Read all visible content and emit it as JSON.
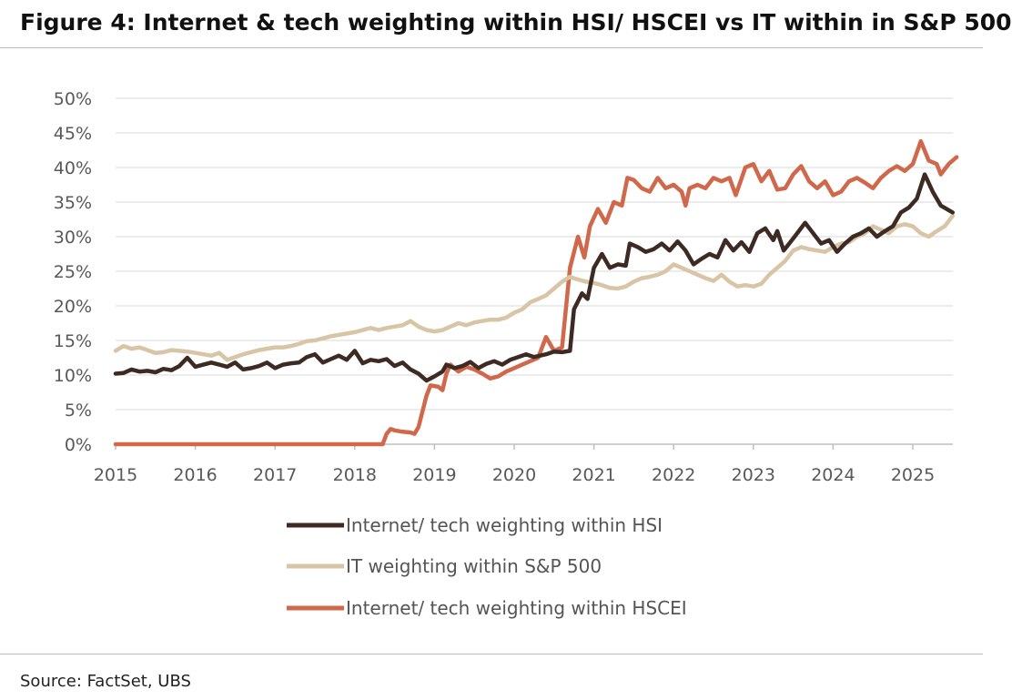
{
  "title": "Figure 4: Internet & tech weighting within HSI/ HSCEI vs IT within in S&P 500",
  "source": "Source: FactSet, UBS",
  "chart_data": {
    "type": "line",
    "y_ticks": [
      "0%",
      "5%",
      "10%",
      "15%",
      "20%",
      "25%",
      "30%",
      "35%",
      "40%",
      "45%",
      "50%"
    ],
    "x_ticks": [
      "2015",
      "2016",
      "2017",
      "2018",
      "2019",
      "2020",
      "2021",
      "2022",
      "2023",
      "2024",
      "2025"
    ],
    "xlim": [
      2015.0,
      2025.6
    ],
    "ylim": [
      0,
      50
    ],
    "grid": "horizontal",
    "legend_position": "bottom",
    "series": [
      {
        "name": "Internet/ tech weighting within HSI",
        "color": "#3d2b23",
        "points": [
          [
            2015.0,
            10.2
          ],
          [
            2015.1,
            10.3
          ],
          [
            2015.2,
            10.8
          ],
          [
            2015.3,
            10.5
          ],
          [
            2015.4,
            10.6
          ],
          [
            2015.5,
            10.4
          ],
          [
            2015.6,
            10.9
          ],
          [
            2015.7,
            10.7
          ],
          [
            2015.8,
            11.3
          ],
          [
            2015.9,
            12.5
          ],
          [
            2016.0,
            11.2
          ],
          [
            2016.1,
            11.5
          ],
          [
            2016.2,
            11.8
          ],
          [
            2016.3,
            11.5
          ],
          [
            2016.4,
            11.2
          ],
          [
            2016.5,
            11.8
          ],
          [
            2016.6,
            10.8
          ],
          [
            2016.7,
            11.0
          ],
          [
            2016.8,
            11.3
          ],
          [
            2016.9,
            11.8
          ],
          [
            2017.0,
            11.0
          ],
          [
            2017.1,
            11.5
          ],
          [
            2017.2,
            11.7
          ],
          [
            2017.3,
            11.8
          ],
          [
            2017.4,
            12.6
          ],
          [
            2017.5,
            13.0
          ],
          [
            2017.6,
            11.8
          ],
          [
            2017.7,
            12.3
          ],
          [
            2017.8,
            12.8
          ],
          [
            2017.9,
            12.2
          ],
          [
            2018.0,
            13.5
          ],
          [
            2018.1,
            11.7
          ],
          [
            2018.2,
            12.2
          ],
          [
            2018.3,
            12.0
          ],
          [
            2018.4,
            12.3
          ],
          [
            2018.5,
            11.3
          ],
          [
            2018.6,
            11.8
          ],
          [
            2018.7,
            10.8
          ],
          [
            2018.8,
            10.2
          ],
          [
            2018.9,
            9.2
          ],
          [
            2019.0,
            9.8
          ],
          [
            2019.1,
            10.5
          ],
          [
            2019.15,
            11.5
          ],
          [
            2019.25,
            11.0
          ],
          [
            2019.35,
            11.3
          ],
          [
            2019.45,
            11.9
          ],
          [
            2019.55,
            11.0
          ],
          [
            2019.65,
            11.6
          ],
          [
            2019.75,
            12.0
          ],
          [
            2019.85,
            11.5
          ],
          [
            2019.95,
            12.2
          ],
          [
            2020.05,
            12.6
          ],
          [
            2020.15,
            13.0
          ],
          [
            2020.25,
            12.6
          ],
          [
            2020.4,
            13.0
          ],
          [
            2020.5,
            13.4
          ],
          [
            2020.6,
            13.3
          ],
          [
            2020.7,
            13.5
          ],
          [
            2020.75,
            19.5
          ],
          [
            2020.85,
            21.8
          ],
          [
            2020.92,
            21.0
          ],
          [
            2021.0,
            25.5
          ],
          [
            2021.1,
            27.5
          ],
          [
            2021.2,
            25.5
          ],
          [
            2021.3,
            26.0
          ],
          [
            2021.4,
            25.8
          ],
          [
            2021.45,
            29.0
          ],
          [
            2021.55,
            28.5
          ],
          [
            2021.65,
            27.8
          ],
          [
            2021.75,
            28.2
          ],
          [
            2021.85,
            29.0
          ],
          [
            2021.95,
            28.0
          ],
          [
            2022.05,
            29.3
          ],
          [
            2022.15,
            28.0
          ],
          [
            2022.25,
            26.0
          ],
          [
            2022.35,
            26.8
          ],
          [
            2022.45,
            27.5
          ],
          [
            2022.55,
            27.0
          ],
          [
            2022.65,
            29.5
          ],
          [
            2022.75,
            28.0
          ],
          [
            2022.85,
            29.2
          ],
          [
            2022.95,
            27.8
          ],
          [
            2023.05,
            30.5
          ],
          [
            2023.15,
            31.2
          ],
          [
            2023.25,
            29.5
          ],
          [
            2023.3,
            30.8
          ],
          [
            2023.38,
            28.0
          ],
          [
            2023.45,
            29.0
          ],
          [
            2023.55,
            30.5
          ],
          [
            2023.65,
            32.0
          ],
          [
            2023.75,
            30.5
          ],
          [
            2023.85,
            29.0
          ],
          [
            2023.95,
            29.5
          ],
          [
            2024.05,
            27.8
          ],
          [
            2024.15,
            29.0
          ],
          [
            2024.25,
            30.0
          ],
          [
            2024.35,
            30.5
          ],
          [
            2024.45,
            31.2
          ],
          [
            2024.55,
            30.0
          ],
          [
            2024.65,
            30.8
          ],
          [
            2024.75,
            31.5
          ],
          [
            2024.85,
            33.5
          ],
          [
            2024.95,
            34.2
          ],
          [
            2025.05,
            35.5
          ],
          [
            2025.15,
            39.0
          ],
          [
            2025.25,
            36.5
          ],
          [
            2025.35,
            34.5
          ],
          [
            2025.5,
            33.5
          ]
        ]
      },
      {
        "name": "IT weighting within S&P 500",
        "color": "#d8c5a6",
        "points": [
          [
            2015.0,
            13.5
          ],
          [
            2015.1,
            14.2
          ],
          [
            2015.2,
            13.8
          ],
          [
            2015.3,
            14.0
          ],
          [
            2015.4,
            13.6
          ],
          [
            2015.5,
            13.2
          ],
          [
            2015.6,
            13.3
          ],
          [
            2015.7,
            13.6
          ],
          [
            2015.8,
            13.5
          ],
          [
            2015.9,
            13.4
          ],
          [
            2016.0,
            13.2
          ],
          [
            2016.1,
            13.0
          ],
          [
            2016.2,
            12.8
          ],
          [
            2016.3,
            13.2
          ],
          [
            2016.4,
            12.2
          ],
          [
            2016.5,
            12.6
          ],
          [
            2016.6,
            13.0
          ],
          [
            2016.7,
            13.3
          ],
          [
            2016.8,
            13.6
          ],
          [
            2016.9,
            13.8
          ],
          [
            2017.0,
            14.0
          ],
          [
            2017.1,
            14.0
          ],
          [
            2017.2,
            14.2
          ],
          [
            2017.3,
            14.5
          ],
          [
            2017.4,
            14.9
          ],
          [
            2017.5,
            15.0
          ],
          [
            2017.6,
            15.3
          ],
          [
            2017.7,
            15.6
          ],
          [
            2017.8,
            15.8
          ],
          [
            2017.9,
            16.0
          ],
          [
            2018.0,
            16.2
          ],
          [
            2018.1,
            16.5
          ],
          [
            2018.2,
            16.8
          ],
          [
            2018.3,
            16.5
          ],
          [
            2018.4,
            16.8
          ],
          [
            2018.5,
            17.0
          ],
          [
            2018.6,
            17.2
          ],
          [
            2018.7,
            17.8
          ],
          [
            2018.8,
            17.0
          ],
          [
            2018.9,
            16.5
          ],
          [
            2019.0,
            16.3
          ],
          [
            2019.1,
            16.5
          ],
          [
            2019.2,
            17.0
          ],
          [
            2019.3,
            17.5
          ],
          [
            2019.4,
            17.2
          ],
          [
            2019.5,
            17.6
          ],
          [
            2019.6,
            17.8
          ],
          [
            2019.7,
            18.0
          ],
          [
            2019.8,
            18.0
          ],
          [
            2019.9,
            18.3
          ],
          [
            2020.0,
            19.0
          ],
          [
            2020.1,
            19.5
          ],
          [
            2020.2,
            20.5
          ],
          [
            2020.3,
            21.0
          ],
          [
            2020.4,
            21.5
          ],
          [
            2020.5,
            22.5
          ],
          [
            2020.6,
            23.5
          ],
          [
            2020.7,
            24.2
          ],
          [
            2020.8,
            23.8
          ],
          [
            2020.9,
            23.5
          ],
          [
            2021.0,
            23.3
          ],
          [
            2021.1,
            23.0
          ],
          [
            2021.2,
            22.6
          ],
          [
            2021.3,
            22.5
          ],
          [
            2021.4,
            22.8
          ],
          [
            2021.5,
            23.5
          ],
          [
            2021.6,
            24.0
          ],
          [
            2021.7,
            24.2
          ],
          [
            2021.8,
            24.5
          ],
          [
            2021.9,
            25.0
          ],
          [
            2022.0,
            26.0
          ],
          [
            2022.1,
            25.5
          ],
          [
            2022.2,
            25.0
          ],
          [
            2022.3,
            24.5
          ],
          [
            2022.4,
            24.0
          ],
          [
            2022.5,
            23.6
          ],
          [
            2022.6,
            24.5
          ],
          [
            2022.7,
            23.5
          ],
          [
            2022.8,
            22.8
          ],
          [
            2022.9,
            23.0
          ],
          [
            2023.0,
            22.8
          ],
          [
            2023.1,
            23.2
          ],
          [
            2023.2,
            24.5
          ],
          [
            2023.3,
            25.5
          ],
          [
            2023.4,
            26.5
          ],
          [
            2023.5,
            28.0
          ],
          [
            2023.6,
            28.5
          ],
          [
            2023.7,
            28.2
          ],
          [
            2023.8,
            28.0
          ],
          [
            2023.9,
            27.8
          ],
          [
            2024.0,
            28.5
          ],
          [
            2024.1,
            29.0
          ],
          [
            2024.2,
            29.2
          ],
          [
            2024.3,
            30.0
          ],
          [
            2024.4,
            30.5
          ],
          [
            2024.5,
            31.5
          ],
          [
            2024.6,
            31.0
          ],
          [
            2024.7,
            30.5
          ],
          [
            2024.8,
            31.5
          ],
          [
            2024.9,
            31.8
          ],
          [
            2025.0,
            31.5
          ],
          [
            2025.1,
            30.5
          ],
          [
            2025.2,
            30.0
          ],
          [
            2025.3,
            30.8
          ],
          [
            2025.4,
            31.5
          ],
          [
            2025.5,
            33.0
          ]
        ]
      },
      {
        "name": "Internet/ tech weighting within HSCEI",
        "color": "#d0694b",
        "points": [
          [
            2015.0,
            0.0
          ],
          [
            2018.35,
            0.0
          ],
          [
            2018.4,
            1.5
          ],
          [
            2018.45,
            2.2
          ],
          [
            2018.5,
            2.0
          ],
          [
            2018.6,
            1.8
          ],
          [
            2018.7,
            1.7
          ],
          [
            2018.75,
            1.5
          ],
          [
            2018.8,
            2.5
          ],
          [
            2018.9,
            7.0
          ],
          [
            2018.95,
            8.5
          ],
          [
            2019.05,
            8.3
          ],
          [
            2019.1,
            7.8
          ],
          [
            2019.15,
            10.2
          ],
          [
            2019.2,
            11.5
          ],
          [
            2019.3,
            10.5
          ],
          [
            2019.4,
            11.2
          ],
          [
            2019.5,
            10.8
          ],
          [
            2019.6,
            10.2
          ],
          [
            2019.7,
            9.5
          ],
          [
            2019.8,
            9.8
          ],
          [
            2019.9,
            10.5
          ],
          [
            2020.0,
            11.0
          ],
          [
            2020.1,
            11.5
          ],
          [
            2020.2,
            12.0
          ],
          [
            2020.3,
            12.5
          ],
          [
            2020.4,
            15.5
          ],
          [
            2020.5,
            13.5
          ],
          [
            2020.6,
            14.0
          ],
          [
            2020.7,
            25.5
          ],
          [
            2020.8,
            30.0
          ],
          [
            2020.88,
            27.0
          ],
          [
            2020.95,
            31.5
          ],
          [
            2021.05,
            34.0
          ],
          [
            2021.15,
            32.0
          ],
          [
            2021.25,
            35.0
          ],
          [
            2021.35,
            34.5
          ],
          [
            2021.42,
            38.5
          ],
          [
            2021.5,
            38.2
          ],
          [
            2021.6,
            37.0
          ],
          [
            2021.7,
            36.5
          ],
          [
            2021.8,
            38.5
          ],
          [
            2021.9,
            37.0
          ],
          [
            2022.0,
            37.5
          ],
          [
            2022.1,
            36.5
          ],
          [
            2022.15,
            34.5
          ],
          [
            2022.2,
            37.0
          ],
          [
            2022.3,
            37.5
          ],
          [
            2022.4,
            37.0
          ],
          [
            2022.5,
            38.5
          ],
          [
            2022.6,
            38.0
          ],
          [
            2022.7,
            38.5
          ],
          [
            2022.78,
            36.0
          ],
          [
            2022.9,
            40.0
          ],
          [
            2023.0,
            40.5
          ],
          [
            2023.1,
            38.0
          ],
          [
            2023.2,
            39.5
          ],
          [
            2023.3,
            36.8
          ],
          [
            2023.4,
            37.0
          ],
          [
            2023.5,
            39.0
          ],
          [
            2023.6,
            40.2
          ],
          [
            2023.7,
            38.0
          ],
          [
            2023.8,
            37.0
          ],
          [
            2023.9,
            38.0
          ],
          [
            2024.0,
            36.0
          ],
          [
            2024.1,
            36.5
          ],
          [
            2024.2,
            38.0
          ],
          [
            2024.3,
            38.5
          ],
          [
            2024.4,
            37.8
          ],
          [
            2024.5,
            37.0
          ],
          [
            2024.6,
            38.5
          ],
          [
            2024.7,
            39.5
          ],
          [
            2024.8,
            40.2
          ],
          [
            2024.9,
            39.5
          ],
          [
            2025.0,
            40.5
          ],
          [
            2025.1,
            43.8
          ],
          [
            2025.2,
            41.0
          ],
          [
            2025.3,
            40.5
          ],
          [
            2025.35,
            39.0
          ],
          [
            2025.45,
            40.5
          ],
          [
            2025.55,
            41.5
          ]
        ]
      }
    ]
  }
}
